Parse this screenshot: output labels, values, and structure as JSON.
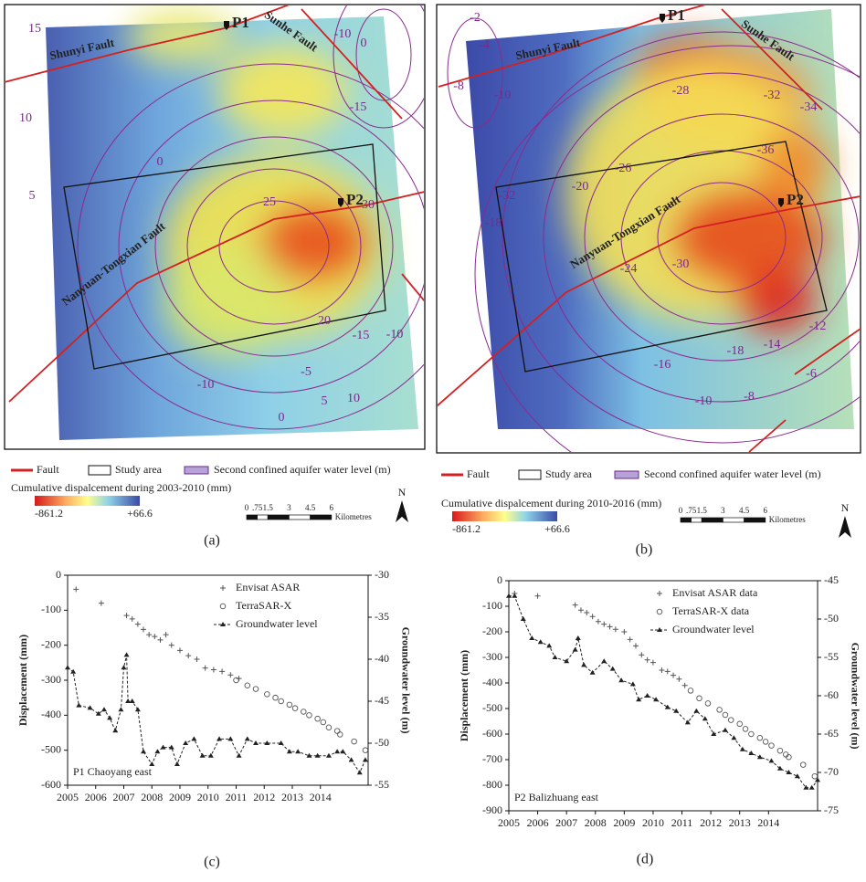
{
  "maps": [
    {
      "caption": "(a)",
      "labels": {
        "p1": "P1",
        "p2": "P2",
        "shunyi": "Shunyi Fault",
        "sunhe": "Sunhe Fault",
        "nanyuan": "Nanyuan-Tongxian Fault"
      },
      "contour_labels": [
        "15",
        "10",
        "5",
        "0",
        "25",
        "30",
        "20",
        "-15",
        "-10",
        "-5",
        "-10",
        "0",
        "5",
        "10",
        "-10",
        "0",
        "-15"
      ],
      "legend": {
        "fault": "Fault",
        "study_area": "Study area",
        "water_level": "Second confined aquifer water level (m)",
        "colorbar_title": "Cumulative dispalcement during 2003-2010 (mm)",
        "colorbar_min": "-861.2",
        "colorbar_max": "+66.6",
        "scale_labels": [
          "0",
          ".75",
          "1.5",
          "3",
          "4.5",
          "6"
        ],
        "scale_unit": "Kilometres",
        "north": "N"
      }
    },
    {
      "caption": "(b)",
      "labels": {
        "p1": "P1",
        "p2": "P2",
        "shunyi": "Shunyi Fault",
        "sunhe": "Sunhe Fault",
        "nanyuan": "Nanyuan-Tongxian Fault"
      },
      "contour_labels": [
        "-2",
        "-4",
        "-8",
        "-10",
        "-28",
        "-32",
        "-34",
        "-36",
        "-32",
        "-18",
        "-26",
        "-20",
        "-24",
        "-30",
        "-16",
        "-18",
        "-14",
        "-12",
        "-6",
        "-10",
        "-8"
      ],
      "legend": {
        "fault": "Fault",
        "study_area": "Study area",
        "water_level": "Second confined aquifer water level (m)",
        "colorbar_title": "Cumulative dispalcement during 2010-2016 (mm)",
        "colorbar_min": "-861.2",
        "colorbar_max": "+66.6",
        "scale_labels": [
          "0",
          ".75",
          "1.5",
          "3",
          "4.5",
          "6"
        ],
        "scale_unit": "Kilometres",
        "north": "N"
      }
    }
  ],
  "chart_data": [
    {
      "type": "line",
      "caption": "(c)",
      "annotation": "P1 Chaoyang east",
      "ylabel": "Displacement (mm)",
      "y2label": "Groundwater level (m)",
      "xlim": [
        2005,
        2015.7
      ],
      "xticks": [
        2005,
        2006,
        2007,
        2008,
        2009,
        2010,
        2011,
        2012,
        2013,
        2014
      ],
      "ylim": [
        -600,
        0
      ],
      "yticks": [
        0,
        -100,
        -200,
        -300,
        -400,
        -500,
        -600
      ],
      "y2lim": [
        -55,
        -30
      ],
      "y2ticks": [
        -30,
        -35,
        -40,
        -45,
        -50,
        -55
      ],
      "series": [
        {
          "name": "Envisat ASAR",
          "color": "#555555",
          "marker": "plus",
          "line_style": "none",
          "x": [
            2005.3,
            2006.2,
            2007.1,
            2007.3,
            2007.5,
            2007.7,
            2007.9,
            2008.1,
            2008.3,
            2008.5,
            2008.7,
            2009.0,
            2009.3,
            2009.6,
            2009.9,
            2010.2,
            2010.5,
            2010.8,
            2011.1
          ],
          "values": [
            -40,
            -80,
            -115,
            -125,
            -140,
            -155,
            -170,
            -175,
            -185,
            -170,
            -200,
            -215,
            -230,
            -240,
            -265,
            -270,
            -275,
            -285,
            -295
          ]
        },
        {
          "name": "TerraSAR-X",
          "color": "#555555",
          "marker": "circle",
          "line_style": "none",
          "x": [
            2011.0,
            2011.4,
            2011.7,
            2012.1,
            2012.4,
            2012.6,
            2012.9,
            2013.1,
            2013.4,
            2013.6,
            2013.9,
            2014.1,
            2014.3,
            2014.6,
            2014.7,
            2015.2,
            2015.6
          ],
          "values": [
            -300,
            -315,
            -325,
            -340,
            -350,
            -360,
            -370,
            -380,
            -390,
            -400,
            -410,
            -420,
            -435,
            -445,
            -455,
            -475,
            -500
          ]
        },
        {
          "name": "Groundwater level",
          "color": "#222222",
          "marker": "triangle",
          "line_style": "dashed",
          "axis": "y2",
          "x": [
            2005.0,
            2005.2,
            2005.4,
            2005.8,
            2006.1,
            2006.3,
            2006.5,
            2006.7,
            2006.9,
            2007.0,
            2007.1,
            2007.15,
            2007.3,
            2007.5,
            2007.7,
            2008.0,
            2008.2,
            2008.4,
            2008.7,
            2008.9,
            2009.2,
            2009.5,
            2009.8,
            2010.1,
            2010.4,
            2010.8,
            2011.1,
            2011.4,
            2011.7,
            2012.1,
            2012.6,
            2012.9,
            2013.2,
            2013.6,
            2013.9,
            2014.3,
            2014.6,
            2014.8,
            2015.1,
            2015.4,
            2015.6
          ],
          "values": [
            -41,
            -41.5,
            -45.5,
            -45.8,
            -46.5,
            -46,
            -47,
            -48.5,
            -46,
            -41,
            -39.5,
            -45,
            -45,
            -46,
            -51,
            -52.5,
            -51,
            -50.5,
            -50.5,
            -52.5,
            -50,
            -49.5,
            -51.5,
            -51.5,
            -49.5,
            -49.5,
            -51.5,
            -49.5,
            -50,
            -50,
            -50,
            -51,
            -51,
            -51.5,
            -51.5,
            -51.5,
            -51,
            -51,
            -52,
            -53.5,
            -52
          ]
        }
      ]
    },
    {
      "type": "line",
      "caption": "(d)",
      "annotation": "P2 Balizhuang east",
      "ylabel": "Displacement (mm)",
      "y2label": "Groundwater level (m)",
      "xlim": [
        2005,
        2015.7
      ],
      "xticks": [
        2005,
        2006,
        2007,
        2008,
        2009,
        2010,
        2011,
        2012,
        2013,
        2014
      ],
      "ylim": [
        -900,
        0
      ],
      "yticks": [
        0,
        -100,
        -200,
        -300,
        -400,
        -500,
        -600,
        -700,
        -800,
        -900
      ],
      "y2lim": [
        -75,
        -45
      ],
      "y2ticks": [
        -45,
        -50,
        -55,
        -60,
        -65,
        -70,
        -75
      ],
      "series": [
        {
          "name": "Envisat ASAR data",
          "color": "#555555",
          "marker": "plus",
          "line_style": "none",
          "x": [
            2005.2,
            2006.0,
            2007.3,
            2007.5,
            2007.7,
            2007.9,
            2008.1,
            2008.3,
            2008.5,
            2008.7,
            2009.0,
            2009.2,
            2009.4,
            2009.6,
            2009.8,
            2010.0,
            2010.3,
            2010.5,
            2010.7,
            2010.9,
            2011.1
          ],
          "values": [
            -50,
            -60,
            -95,
            -115,
            -125,
            -140,
            -160,
            -170,
            -180,
            -190,
            -200,
            -230,
            -255,
            -290,
            -310,
            -320,
            -350,
            -355,
            -370,
            -385,
            -410
          ]
        },
        {
          "name": "TerraSAR-X data",
          "color": "#555555",
          "marker": "circle",
          "line_style": "none",
          "x": [
            2011.3,
            2011.6,
            2011.9,
            2012.3,
            2012.5,
            2012.7,
            2013.0,
            2013.2,
            2013.4,
            2013.7,
            2013.9,
            2014.1,
            2014.4,
            2014.6,
            2014.7,
            2015.2,
            2015.6
          ],
          "values": [
            -430,
            -460,
            -480,
            -505,
            -525,
            -545,
            -560,
            -580,
            -600,
            -615,
            -630,
            -645,
            -665,
            -680,
            -690,
            -720,
            -765
          ]
        },
        {
          "name": "Groundwater level",
          "color": "#222222",
          "marker": "triangle",
          "line_style": "dashed",
          "axis": "y2",
          "x": [
            2005.0,
            2005.2,
            2005.5,
            2005.8,
            2006.1,
            2006.4,
            2006.6,
            2007.0,
            2007.3,
            2007.4,
            2007.6,
            2007.9,
            2008.3,
            2008.6,
            2008.9,
            2009.3,
            2009.5,
            2009.8,
            2010.1,
            2010.5,
            2010.8,
            2011.2,
            2011.5,
            2011.8,
            2012.1,
            2012.5,
            2012.8,
            2013.1,
            2013.4,
            2013.7,
            2014.1,
            2014.4,
            2014.7,
            2015.0,
            2015.3,
            2015.5,
            2015.7
          ],
          "values": [
            -47,
            -47,
            -50,
            -52.5,
            -53,
            -53.5,
            -55,
            -55.5,
            -54,
            -52.5,
            -56,
            -57,
            -55.5,
            -56.5,
            -58,
            -58.5,
            -60.5,
            -60,
            -60.5,
            -61.5,
            -62,
            -63.5,
            -62,
            -63,
            -65,
            -64.5,
            -65.5,
            -67,
            -67.5,
            -68,
            -68.5,
            -69.5,
            -70,
            -70.5,
            -72,
            -72,
            -71
          ]
        }
      ]
    }
  ]
}
